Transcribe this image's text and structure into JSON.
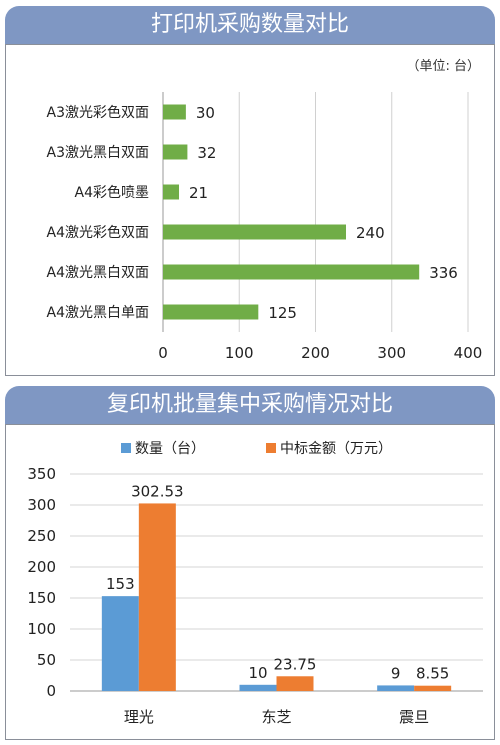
{
  "chart_data": [
    {
      "type": "bar",
      "orientation": "horizontal",
      "title": "打印机采购数量对比",
      "unit_note": "（单位: 台）",
      "categories": [
        "A3激光彩色双面",
        "A3激光黑白双面",
        "A4彩色喷墨",
        "A4激光彩色双面",
        "A4激光黑白双面",
        "A4激光黑白单面"
      ],
      "values": [
        30,
        32,
        21,
        240,
        336,
        125
      ],
      "xlim": [
        0,
        400
      ],
      "xticks": [
        0,
        100,
        200,
        300,
        400
      ],
      "grid": true,
      "color": "#70ad47"
    },
    {
      "type": "bar",
      "orientation": "vertical",
      "title": "复印机批量集中采购情况对比",
      "categories": [
        "理光",
        "东芝",
        "震旦"
      ],
      "series": [
        {
          "name": "数量（台）",
          "values": [
            153,
            10,
            9
          ],
          "labels": [
            "153",
            "10",
            "9"
          ],
          "color": "#5b9bd5"
        },
        {
          "name": "中标金额（万元）",
          "values": [
            302.53,
            23.75,
            8.55
          ],
          "labels": [
            "302.53",
            "23.75",
            "8.55"
          ],
          "color": "#ed7d31"
        }
      ],
      "ylim": [
        0,
        350
      ],
      "yticks": [
        0,
        50,
        100,
        150,
        200,
        250,
        300,
        350
      ],
      "grid": true,
      "legend": "top"
    }
  ]
}
